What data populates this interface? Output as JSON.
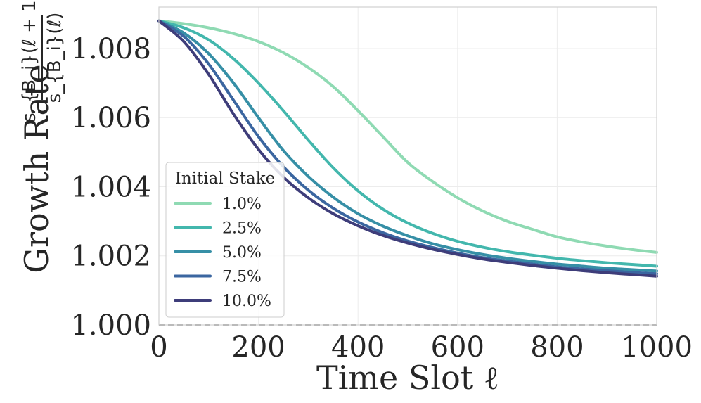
{
  "chart_data": {
    "type": "line",
    "title": "",
    "xlabel": "Time Slot ℓ",
    "ylabel": "Growth Rate",
    "ylabel_fraction": {
      "numerator": "s_{B_i}(ℓ + 1)",
      "denominator": "s_{B_i}(ℓ)"
    },
    "xlim": [
      0,
      1000
    ],
    "ylim": [
      1.0,
      1.0092
    ],
    "xticks": [
      0,
      200,
      400,
      600,
      800,
      1000
    ],
    "xtick_labels": [
      "0",
      "200",
      "400",
      "600",
      "800",
      "1000"
    ],
    "yticks": [
      1.0,
      1.002,
      1.004,
      1.006,
      1.008
    ],
    "ytick_labels": [
      "1.000",
      "1.002",
      "1.004",
      "1.006",
      "1.008"
    ],
    "grid": true,
    "legend": {
      "title": "Initial Stake",
      "position": "lower-left"
    },
    "reference_line": {
      "y": 1.0,
      "style": "dashed",
      "color": "#999999"
    },
    "series": [
      {
        "name": "1.0%",
        "color": "#8fdab3",
        "x": [
          0,
          50,
          100,
          150,
          200,
          250,
          300,
          350,
          400,
          450,
          500,
          550,
          600,
          650,
          700,
          750,
          800,
          850,
          900,
          950,
          1000
        ],
        "y": [
          1.0088,
          1.00872,
          1.0086,
          1.00843,
          1.0082,
          1.00788,
          1.00745,
          1.0069,
          1.0062,
          1.00545,
          1.0047,
          1.00415,
          1.00368,
          1.0033,
          1.003,
          1.00277,
          1.00255,
          1.0024,
          1.00228,
          1.00218,
          1.0021
        ]
      },
      {
        "name": "2.5%",
        "color": "#43b7ad",
        "x": [
          0,
          50,
          100,
          150,
          200,
          250,
          300,
          350,
          400,
          450,
          500,
          550,
          600,
          650,
          700,
          750,
          800,
          850,
          900,
          950,
          1000
        ],
        "y": [
          1.0088,
          1.0086,
          1.00825,
          1.0077,
          1.007,
          1.0062,
          1.00535,
          1.00455,
          1.00388,
          1.00335,
          1.00295,
          1.00265,
          1.00242,
          1.00225,
          1.00212,
          1.00202,
          1.00193,
          1.00186,
          1.0018,
          1.00175,
          1.0017
        ]
      },
      {
        "name": "5.0%",
        "color": "#368fa6",
        "x": [
          0,
          50,
          100,
          150,
          200,
          250,
          300,
          350,
          400,
          450,
          500,
          550,
          600,
          650,
          700,
          750,
          800,
          850,
          900,
          950,
          1000
        ],
        "y": [
          1.0088,
          1.00845,
          1.00785,
          1.007,
          1.006,
          1.00505,
          1.0043,
          1.0037,
          1.00322,
          1.00286,
          1.00258,
          1.00235,
          1.00218,
          1.00204,
          1.00193,
          1.00184,
          1.00176,
          1.0017,
          1.00164,
          1.0016,
          1.00156
        ]
      },
      {
        "name": "7.5%",
        "color": "#3b66a0",
        "x": [
          0,
          50,
          100,
          150,
          200,
          250,
          300,
          350,
          400,
          450,
          500,
          550,
          600,
          650,
          700,
          750,
          800,
          850,
          900,
          950,
          1000
        ],
        "y": [
          1.0088,
          1.00835,
          1.00755,
          1.0065,
          1.00545,
          1.00458,
          1.0039,
          1.00338,
          1.00298,
          1.00267,
          1.00243,
          1.00224,
          1.00208,
          1.00195,
          1.00185,
          1.00176,
          1.00168,
          1.00162,
          1.00157,
          1.00152,
          1.00148
        ]
      },
      {
        "name": "10.0%",
        "color": "#3e3d7a",
        "x": [
          0,
          50,
          100,
          150,
          200,
          250,
          300,
          350,
          400,
          450,
          500,
          550,
          600,
          650,
          700,
          750,
          800,
          850,
          900,
          950,
          1000
        ],
        "y": [
          1.0088,
          1.0082,
          1.00725,
          1.0061,
          1.00508,
          1.00428,
          1.00368,
          1.00322,
          1.00287,
          1.00259,
          1.00237,
          1.00219,
          1.00204,
          1.00191,
          1.00181,
          1.00172,
          1.00164,
          1.00157,
          1.00151,
          1.00146,
          1.00141
        ]
      }
    ]
  }
}
